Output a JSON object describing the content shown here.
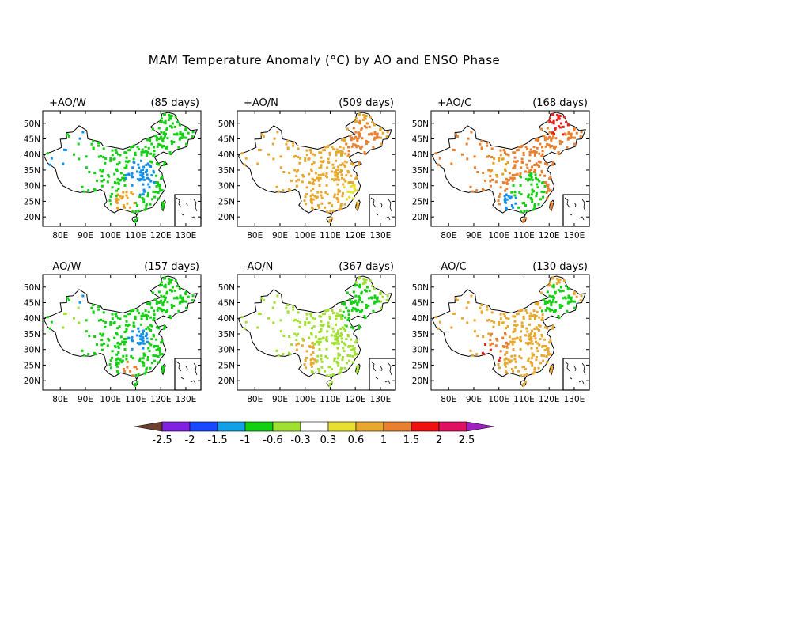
{
  "title": "MAM Temperature Anomaly (°C) by AO and ENSO Phase",
  "lon_ticks": [
    "80E",
    "90E",
    "100E",
    "110E",
    "120E",
    "130E"
  ],
  "lat_ticks": [
    "50N",
    "45N",
    "40N",
    "35N",
    "30N",
    "25N",
    "20N"
  ],
  "panels": [
    {
      "phase": "+AO/W",
      "days": "(85 days)",
      "base_color": "#10d010",
      "zones": [
        {
          "color": "#1090e8",
          "cx": 112,
          "cy": 33,
          "r": 6
        },
        {
          "color": "#1090e8",
          "cx": 80,
          "cy": 38,
          "r": 5
        },
        {
          "color": "#1090e8",
          "cx": 87,
          "cy": 47,
          "r": 3
        },
        {
          "color": "#e8a020",
          "cx": 106,
          "cy": 25,
          "r": 4
        }
      ]
    },
    {
      "phase": "+AO/N",
      "days": "(509 days)",
      "base_color": "#e8a830",
      "zones": [
        {
          "color": "#e88030",
          "cx": 123,
          "cy": 44,
          "r": 7
        },
        {
          "color": "#e8e030",
          "cx": 118,
          "cy": 28,
          "r": 3
        }
      ]
    },
    {
      "phase": "+AO/C",
      "days": "(168 days)",
      "base_color": "#e88030",
      "zones": [
        {
          "color": "#10d010",
          "cx": 112,
          "cy": 27,
          "r": 7
        },
        {
          "color": "#1090e8",
          "cx": 104,
          "cy": 25,
          "r": 3
        },
        {
          "color": "#e82020",
          "cx": 124,
          "cy": 50,
          "r": 4
        },
        {
          "color": "#e8a020",
          "cx": 100,
          "cy": 36,
          "r": 4
        }
      ]
    },
    {
      "phase": "-AO/W",
      "days": "(157 days)",
      "base_color": "#10d010",
      "zones": [
        {
          "color": "#1090e8",
          "cx": 111,
          "cy": 33,
          "r": 4
        },
        {
          "color": "#1090e8",
          "cx": 88,
          "cy": 47,
          "r": 3
        },
        {
          "color": "#a0e030",
          "cx": 84,
          "cy": 40,
          "r": 5
        },
        {
          "color": "#e88030",
          "cx": 108,
          "cy": 24,
          "r": 3
        }
      ]
    },
    {
      "phase": "-AO/N",
      "days": "(367 days)",
      "base_color": "#a0e030",
      "zones": [
        {
          "color": "#10d010",
          "cx": 122,
          "cy": 43,
          "r": 8
        },
        {
          "color": "#e8a830",
          "cx": 100,
          "cy": 28,
          "r": 5
        }
      ]
    },
    {
      "phase": "-AO/C",
      "days": "(130 days)",
      "base_color": "#e8a830",
      "zones": [
        {
          "color": "#10d010",
          "cx": 124,
          "cy": 44,
          "r": 7
        },
        {
          "color": "#e82020",
          "cx": 97,
          "cy": 30,
          "r": 5
        },
        {
          "color": "#e88030",
          "cx": 100,
          "cy": 33,
          "r": 4
        }
      ]
    }
  ],
  "colorbar": {
    "labels": [
      "-2.5",
      "-2",
      "-1.5",
      "-1",
      "-0.6",
      "-0.3",
      "0.3",
      "0.6",
      "1",
      "1.5",
      "2",
      "2.5"
    ],
    "left_cap_color": "#6e4030",
    "right_cap_color": "#a020c0",
    "colors": [
      "#8020e0",
      "#1848ff",
      "#10a0e8",
      "#10d010",
      "#a0e030",
      "#ffffff",
      "#e8e030",
      "#e8a830",
      "#e88030",
      "#f01010",
      "#e01060"
    ]
  }
}
